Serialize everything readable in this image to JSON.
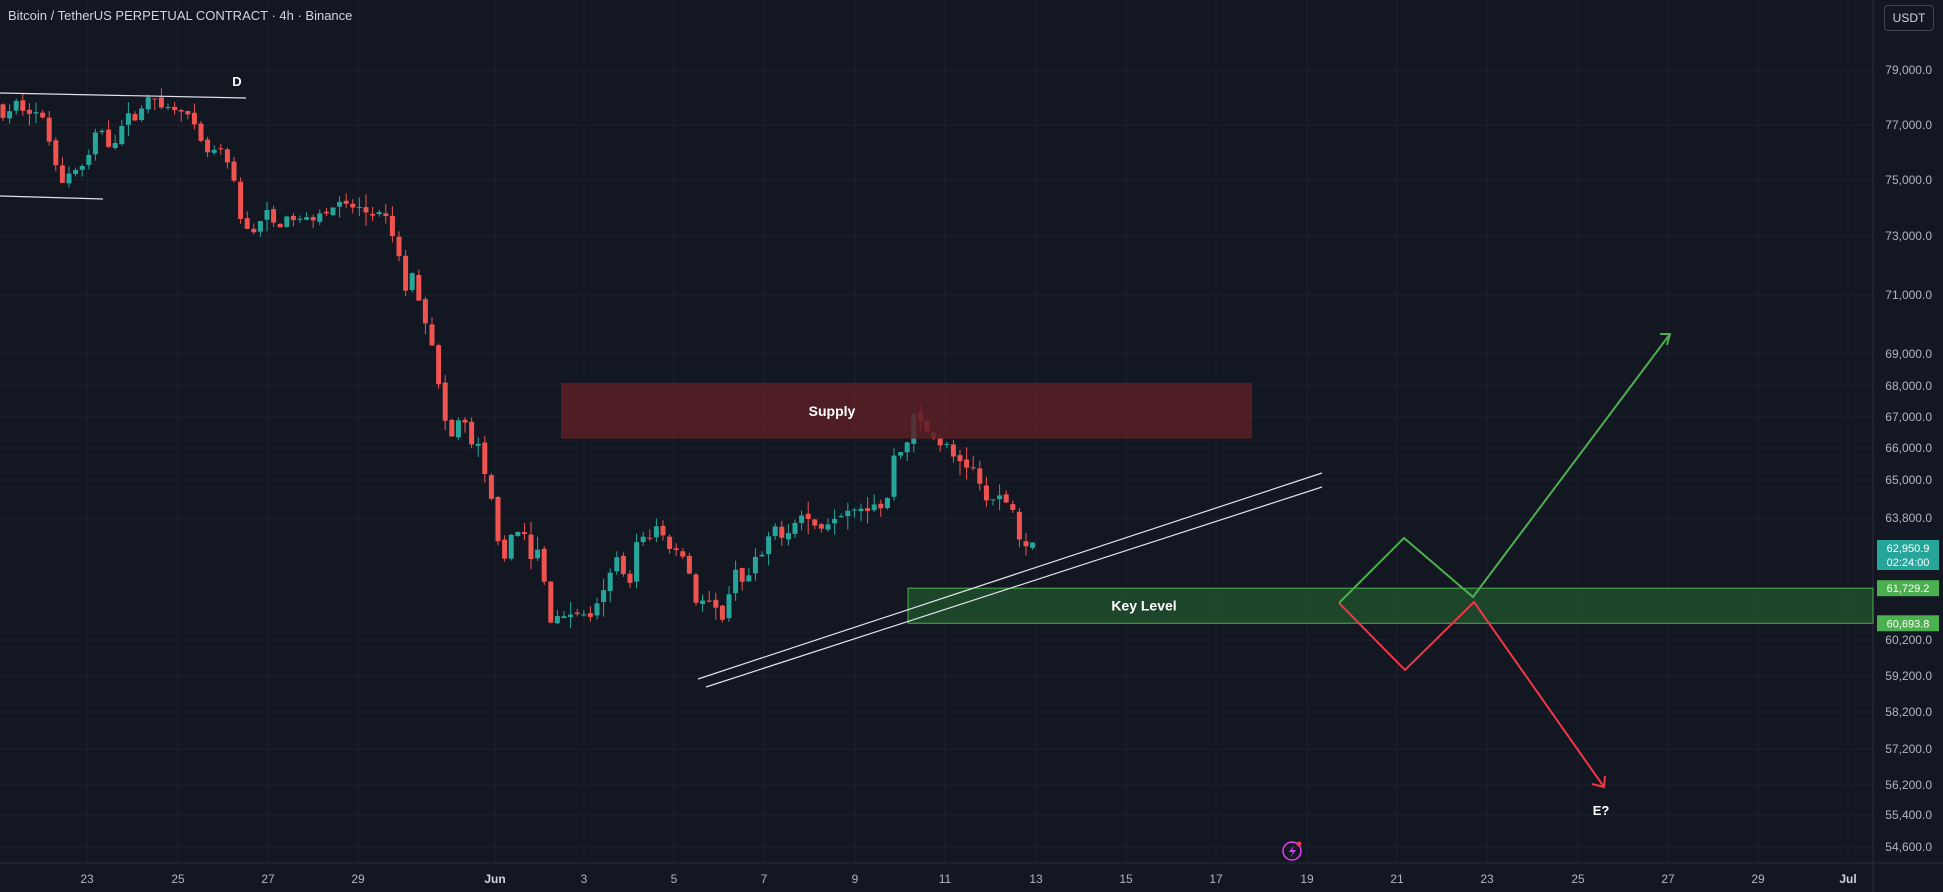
{
  "header": {
    "title": "Bitcoin / TetherUS PERPETUAL CONTRACT · 4h · Binance",
    "currency_button": "USDT"
  },
  "colors": {
    "background": "#131722",
    "grid": "#1e2230",
    "up": "#26a69a",
    "down": "#ef5350",
    "supply_zone": "#5a1e25",
    "key_zone": "#1f4a2a",
    "key_border": "#4caf50",
    "bull_path": "#4caf50",
    "bear_path": "#f23645",
    "trendline": "#e0e3eb"
  },
  "chart_data": {
    "type": "candlestick",
    "symbol": "Bitcoin / TetherUS PERPETUAL CONTRACT",
    "interval": "4h",
    "exchange": "Binance",
    "x_ticks": [
      "23",
      "25",
      "27",
      "29",
      "Jun",
      "3",
      "5",
      "7",
      "9",
      "11",
      "13",
      "15",
      "17",
      "19",
      "21",
      "23",
      "25",
      "27",
      "29",
      "Jul"
    ],
    "y_ticks": [
      "79,000.0",
      "77,000.0",
      "75,000.0",
      "73,000.0",
      "71,000.0",
      "69,000.0",
      "68,000.0",
      "67,000.0",
      "66,000.0",
      "65,000.0",
      "63,800.0",
      "60,200.0",
      "59,200.0",
      "58,200.0",
      "57,200.0",
      "56,200.0",
      "55,400.0",
      "54,600.0"
    ],
    "price_labels": [
      {
        "value": "62,950.9",
        "sub": "02:24:00",
        "color": "#26a69a"
      },
      {
        "value": "61,729.2",
        "color": "#4caf50"
      },
      {
        "value": "60,693.8",
        "color": "#4caf50"
      }
    ],
    "candle_path": [
      [
        0,
        77700
      ],
      [
        12,
        77200
      ],
      [
        24,
        77800
      ],
      [
        36,
        77600
      ],
      [
        48,
        77300
      ],
      [
        60,
        76000
      ],
      [
        70,
        74900
      ],
      [
        80,
        75400
      ],
      [
        92,
        75500
      ],
      [
        106,
        77000
      ],
      [
        118,
        76200
      ],
      [
        130,
        77100
      ],
      [
        142,
        77400
      ],
      [
        152,
        77800
      ],
      [
        164,
        78000
      ],
      [
        176,
        77500
      ],
      [
        186,
        77800
      ],
      [
        196,
        77200
      ],
      [
        206,
        76400
      ],
      [
        216,
        75900
      ],
      [
        226,
        76100
      ],
      [
        238,
        75300
      ],
      [
        248,
        73400
      ],
      [
        260,
        73200
      ],
      [
        272,
        73800
      ],
      [
        284,
        73300
      ],
      [
        296,
        73700
      ],
      [
        308,
        73500
      ],
      [
        322,
        73800
      ],
      [
        336,
        74000
      ],
      [
        348,
        74100
      ],
      [
        362,
        74000
      ],
      [
        376,
        73800
      ],
      [
        390,
        73700
      ],
      [
        402,
        72800
      ],
      [
        412,
        71200
      ],
      [
        420,
        71700
      ],
      [
        430,
        70400
      ],
      [
        440,
        69300
      ],
      [
        448,
        67200
      ],
      [
        458,
        66300
      ],
      [
        468,
        67100
      ],
      [
        476,
        66200
      ],
      [
        486,
        65900
      ],
      [
        494,
        64700
      ],
      [
        502,
        63900
      ],
      [
        510,
        62200
      ],
      [
        520,
        63600
      ],
      [
        528,
        63500
      ],
      [
        538,
        62500
      ],
      [
        546,
        62900
      ],
      [
        556,
        60800
      ],
      [
        564,
        61000
      ],
      [
        572,
        60800
      ],
      [
        580,
        61100
      ],
      [
        590,
        60900
      ],
      [
        600,
        61000
      ],
      [
        610,
        61500
      ],
      [
        618,
        62200
      ],
      [
        626,
        62800
      ],
      [
        636,
        61700
      ],
      [
        644,
        63400
      ],
      [
        654,
        63000
      ],
      [
        664,
        63600
      ],
      [
        674,
        63000
      ],
      [
        684,
        62900
      ],
      [
        692,
        62700
      ],
      [
        702,
        61400
      ],
      [
        712,
        61300
      ],
      [
        722,
        61000
      ],
      [
        732,
        60900
      ],
      [
        742,
        62400
      ],
      [
        752,
        61800
      ],
      [
        762,
        62500
      ],
      [
        772,
        62800
      ],
      [
        782,
        63500
      ],
      [
        792,
        63300
      ],
      [
        802,
        63800
      ],
      [
        812,
        63900
      ],
      [
        822,
        63500
      ],
      [
        832,
        63600
      ],
      [
        842,
        64000
      ],
      [
        852,
        64100
      ],
      [
        862,
        64300
      ],
      [
        872,
        64100
      ],
      [
        882,
        64400
      ],
      [
        892,
        63900
      ],
      [
        900,
        65800
      ],
      [
        910,
        65900
      ],
      [
        920,
        67000
      ],
      [
        930,
        66700
      ],
      [
        940,
        66300
      ],
      [
        950,
        66100
      ],
      [
        960,
        65700
      ],
      [
        970,
        65600
      ],
      [
        980,
        65300
      ],
      [
        990,
        64500
      ],
      [
        1000,
        64300
      ],
      [
        1010,
        64400
      ],
      [
        1020,
        64100
      ],
      [
        1028,
        62900
      ],
      [
        1038,
        63100
      ]
    ],
    "zones": [
      {
        "label": "Supply",
        "top": 68100,
        "bottom": 66300
      },
      {
        "label": "Key Level",
        "top": 61729.2,
        "bottom": 60693.8
      }
    ],
    "annotations": [
      "D",
      "Key Level",
      "Supply",
      "E?"
    ]
  }
}
